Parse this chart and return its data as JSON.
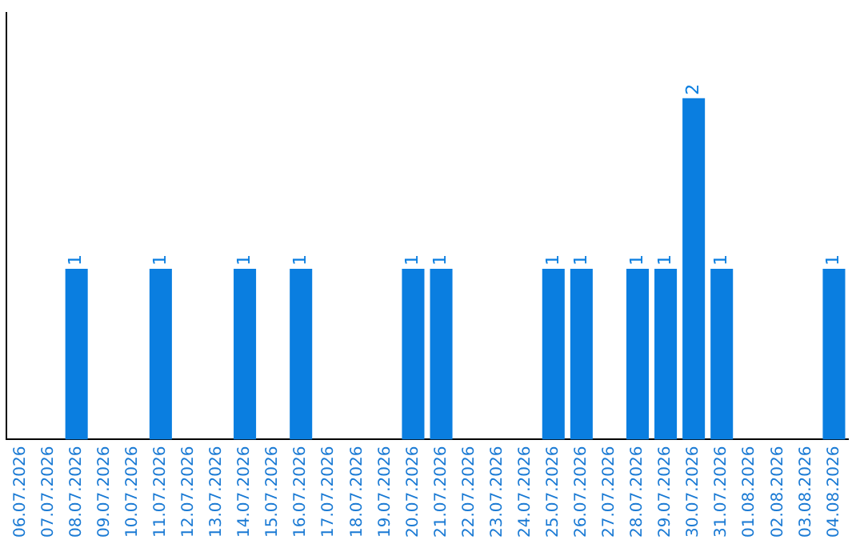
{
  "chart_data": {
    "type": "bar",
    "categories": [
      "06.07.2026",
      "07.07.2026",
      "08.07.2026",
      "09.07.2026",
      "10.07.2026",
      "11.07.2026",
      "12.07.2026",
      "13.07.2026",
      "14.07.2026",
      "15.07.2026",
      "16.07.2026",
      "17.07.2026",
      "18.07.2026",
      "19.07.2026",
      "20.07.2026",
      "21.07.2026",
      "22.07.2026",
      "23.07.2026",
      "24.07.2026",
      "25.07.2026",
      "26.07.2026",
      "27.07.2026",
      "28.07.2026",
      "29.07.2026",
      "30.07.2026",
      "31.07.2026",
      "01.08.2026",
      "02.08.2026",
      "03.08.2026",
      "04.08.2026"
    ],
    "values": [
      0,
      0,
      1,
      0,
      0,
      1,
      0,
      0,
      1,
      0,
      1,
      0,
      0,
      0,
      1,
      1,
      0,
      0,
      0,
      1,
      1,
      0,
      1,
      1,
      2,
      1,
      0,
      0,
      0,
      1
    ],
    "value_labels": [
      null,
      null,
      "1",
      null,
      null,
      "1",
      null,
      null,
      "1",
      null,
      "1",
      null,
      null,
      null,
      "1",
      "1",
      null,
      null,
      null,
      "1",
      "1",
      null,
      "1",
      "1",
      "2",
      "1",
      null,
      null,
      null,
      "1"
    ],
    "color": "#0a7ee0",
    "relative": false,
    "tick_labels": "x",
    "grid": false,
    "legend": false
  }
}
